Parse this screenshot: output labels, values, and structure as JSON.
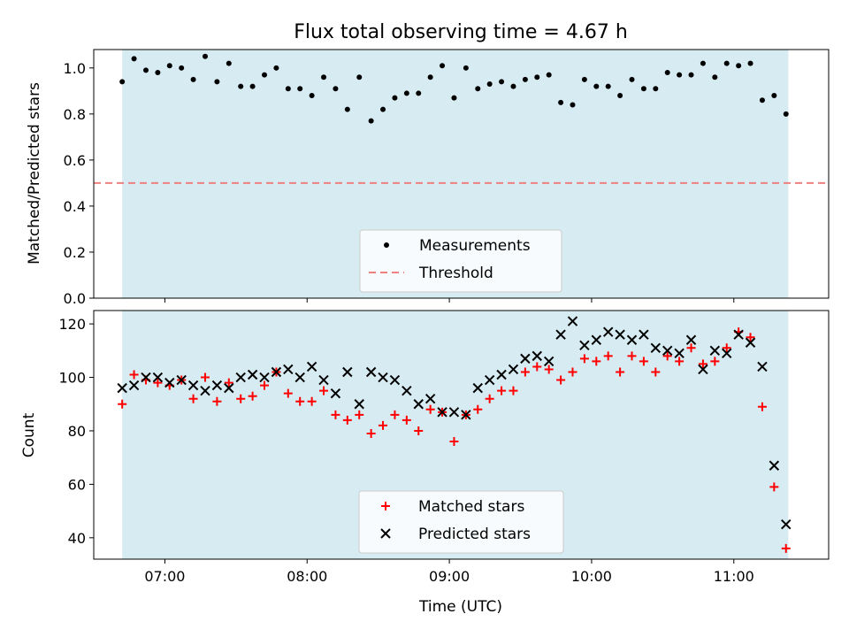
{
  "title": "Flux total observing time = 4.67 h",
  "colors": {
    "shade": "#add8e6",
    "measurement": "#000000",
    "threshold": "#f08080",
    "matched": "#ff0000",
    "predicted": "#000000"
  },
  "chart_data": [
    {
      "type": "scatter",
      "title": "Flux total observing time = 4.67 h",
      "ylabel": "Matched/Predicted stars",
      "xlabel": "",
      "xlim": [
        "06:30",
        "11:40"
      ],
      "ylim": [
        0,
        1.08
      ],
      "xticks": [
        "07:00",
        "08:00",
        "09:00",
        "10:00",
        "11:00"
      ],
      "yticks": [
        0.0,
        0.2,
        0.4,
        0.6,
        0.8,
        1.0
      ],
      "ytick_labels": [
        "0.0",
        "0.2",
        "0.4",
        "0.6",
        "0.8",
        "1.0"
      ],
      "shaded_span": [
        "06:42",
        "11:23"
      ],
      "threshold": 0.5,
      "legend_position": "lower center",
      "legend": [
        "Measurements",
        "Threshold"
      ],
      "series": [
        {
          "name": "Measurements",
          "x": [
            "06:42",
            "06:47",
            "06:52",
            "06:57",
            "07:02",
            "07:07",
            "07:12",
            "07:17",
            "07:22",
            "07:27",
            "07:32",
            "07:37",
            "07:42",
            "07:47",
            "07:52",
            "07:57",
            "08:02",
            "08:07",
            "08:12",
            "08:17",
            "08:22",
            "08:27",
            "08:32",
            "08:37",
            "08:42",
            "08:47",
            "08:52",
            "08:57",
            "09:02",
            "09:07",
            "09:12",
            "09:17",
            "09:22",
            "09:27",
            "09:32",
            "09:37",
            "09:42",
            "09:47",
            "09:52",
            "09:57",
            "10:02",
            "10:07",
            "10:12",
            "10:17",
            "10:22",
            "10:27",
            "10:32",
            "10:37",
            "10:42",
            "10:47",
            "10:52",
            "10:57",
            "11:02",
            "11:07",
            "11:12",
            "11:17",
            "11:22"
          ],
          "y": [
            0.94,
            1.04,
            0.99,
            0.98,
            1.01,
            1.0,
            0.95,
            1.05,
            0.94,
            1.02,
            0.92,
            0.92,
            0.97,
            1.0,
            0.91,
            0.91,
            0.88,
            0.96,
            0.91,
            0.82,
            0.96,
            0.77,
            0.82,
            0.87,
            0.89,
            0.89,
            0.96,
            1.01,
            0.87,
            1.0,
            0.91,
            0.93,
            0.94,
            0.92,
            0.95,
            0.96,
            0.97,
            0.85,
            0.84,
            0.95,
            0.92,
            0.92,
            0.88,
            0.95,
            0.91,
            0.91,
            0.98,
            0.97,
            0.97,
            1.02,
            0.96,
            1.02,
            1.01,
            1.02,
            0.86,
            0.88,
            0.8
          ]
        },
        {
          "name": "Threshold",
          "y": 0.5
        }
      ]
    },
    {
      "type": "scatter",
      "title": "",
      "xlabel": "Time (UTC)",
      "ylabel": "Count",
      "xlim": [
        "06:30",
        "11:40"
      ],
      "ylim": [
        32,
        125
      ],
      "xticks": [
        "07:00",
        "08:00",
        "09:00",
        "10:00",
        "11:00"
      ],
      "yticks": [
        40,
        60,
        80,
        100,
        120
      ],
      "shaded_span": [
        "06:42",
        "11:23"
      ],
      "legend_position": "lower center",
      "legend": [
        "Matched stars",
        "Predicted stars"
      ],
      "series": [
        {
          "name": "Matched stars",
          "x": [
            "06:42",
            "06:47",
            "06:52",
            "06:57",
            "07:02",
            "07:07",
            "07:12",
            "07:17",
            "07:22",
            "07:27",
            "07:32",
            "07:37",
            "07:42",
            "07:47",
            "07:52",
            "07:57",
            "08:02",
            "08:07",
            "08:12",
            "08:17",
            "08:22",
            "08:27",
            "08:32",
            "08:37",
            "08:42",
            "08:47",
            "08:52",
            "08:57",
            "09:02",
            "09:07",
            "09:12",
            "09:17",
            "09:22",
            "09:27",
            "09:32",
            "09:37",
            "09:42",
            "09:47",
            "09:52",
            "09:57",
            "10:02",
            "10:07",
            "10:12",
            "10:17",
            "10:22",
            "10:27",
            "10:32",
            "10:37",
            "10:42",
            "10:47",
            "10:52",
            "10:57",
            "11:02",
            "11:07",
            "11:12",
            "11:17",
            "11:22"
          ],
          "y": [
            90,
            101,
            99,
            98,
            97,
            99,
            92,
            100,
            91,
            98,
            92,
            93,
            97,
            102,
            94,
            91,
            91,
            95,
            86,
            84,
            86,
            79,
            82,
            86,
            84,
            80,
            88,
            87,
            76,
            86,
            88,
            92,
            95,
            95,
            102,
            104,
            103,
            99,
            102,
            107,
            106,
            108,
            102,
            108,
            106,
            102,
            108,
            106,
            111,
            105,
            106,
            111,
            117,
            115,
            89,
            59,
            36
          ]
        },
        {
          "name": "Predicted stars",
          "x": [
            "06:42",
            "06:47",
            "06:52",
            "06:57",
            "07:02",
            "07:07",
            "07:12",
            "07:17",
            "07:22",
            "07:27",
            "07:32",
            "07:37",
            "07:42",
            "07:47",
            "07:52",
            "07:57",
            "08:02",
            "08:07",
            "08:12",
            "08:17",
            "08:22",
            "08:27",
            "08:32",
            "08:37",
            "08:42",
            "08:47",
            "08:52",
            "08:57",
            "09:02",
            "09:07",
            "09:12",
            "09:17",
            "09:22",
            "09:27",
            "09:32",
            "09:37",
            "09:42",
            "09:47",
            "09:52",
            "09:57",
            "10:02",
            "10:07",
            "10:12",
            "10:17",
            "10:22",
            "10:27",
            "10:32",
            "10:37",
            "10:42",
            "10:47",
            "10:52",
            "10:57",
            "11:02",
            "11:07",
            "11:12",
            "11:17",
            "11:22"
          ],
          "y": [
            96,
            97,
            100,
            100,
            98,
            99,
            97,
            95,
            97,
            96,
            100,
            101,
            100,
            102,
            103,
            100,
            104,
            99,
            94,
            102,
            90,
            102,
            100,
            99,
            95,
            90,
            92,
            87,
            87,
            86,
            96,
            99,
            101,
            103,
            107,
            108,
            106,
            116,
            121,
            112,
            114,
            117,
            116,
            114,
            116,
            111,
            110,
            109,
            114,
            103,
            110,
            109,
            116,
            113,
            104,
            67,
            45
          ]
        }
      ]
    }
  ]
}
